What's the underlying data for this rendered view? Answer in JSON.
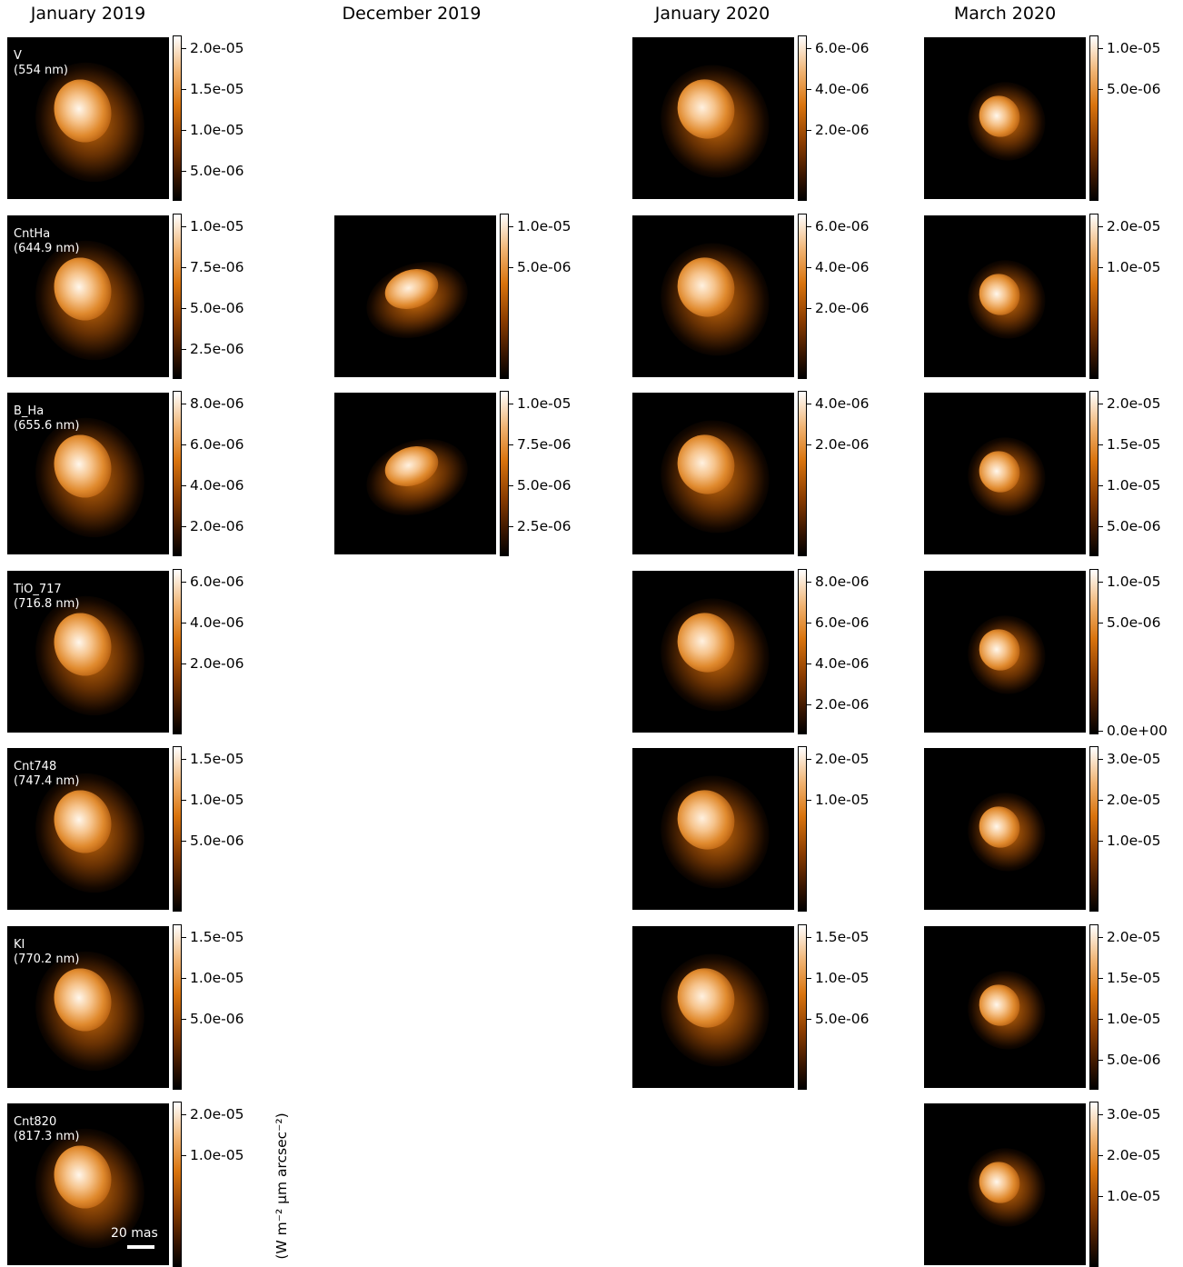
{
  "columns": [
    "January 2019",
    "December 2019",
    "January 2020",
    "March 2020"
  ],
  "unit_label": "(W m⁻² μm arcsec⁻²)",
  "scale_bar": {
    "label": "20 mas"
  },
  "colormap": [
    "#000000",
    "#3a1600",
    "#8a3c00",
    "#d9740e",
    "#f0b270",
    "#ffffff"
  ],
  "panels": [
    {
      "col": 0,
      "row": 0,
      "filter": "V\n(554 nm)",
      "ticks": [
        "2.0e-05",
        "1.5e-05",
        "1.0e-05",
        "5.0e-06"
      ]
    },
    {
      "col": 0,
      "row": 1,
      "filter": "CntHa\n(644.9 nm)",
      "ticks": [
        "1.0e-05",
        "7.5e-06",
        "5.0e-06",
        "2.5e-06"
      ]
    },
    {
      "col": 0,
      "row": 2,
      "filter": "B_Ha\n(655.6 nm)",
      "ticks": [
        "8.0e-06",
        "6.0e-06",
        "4.0e-06",
        "2.0e-06"
      ]
    },
    {
      "col": 0,
      "row": 3,
      "filter": "TiO_717\n(716.8 nm)",
      "ticks": [
        "6.0e-06",
        "4.0e-06",
        "2.0e-06"
      ]
    },
    {
      "col": 0,
      "row": 4,
      "filter": "Cnt748\n(747.4 nm)",
      "ticks": [
        "1.5e-05",
        "1.0e-05",
        "5.0e-06"
      ]
    },
    {
      "col": 0,
      "row": 5,
      "filter": "KI\n(770.2 nm)",
      "ticks": [
        "1.5e-05",
        "1.0e-05",
        "5.0e-06"
      ]
    },
    {
      "col": 0,
      "row": 6,
      "filter": "Cnt820\n(817.3 nm)",
      "ticks": [
        "2.0e-05",
        "1.0e-05"
      ]
    },
    {
      "col": 1,
      "row": 1,
      "filter": "",
      "ticks": [
        "1.0e-05",
        "5.0e-06"
      ]
    },
    {
      "col": 1,
      "row": 2,
      "filter": "",
      "ticks": [
        "1.0e-05",
        "7.5e-06",
        "5.0e-06",
        "2.5e-06"
      ]
    },
    {
      "col": 2,
      "row": 0,
      "filter": "",
      "ticks": [
        "6.0e-06",
        "4.0e-06",
        "2.0e-06"
      ]
    },
    {
      "col": 2,
      "row": 1,
      "filter": "",
      "ticks": [
        "6.0e-06",
        "4.0e-06",
        "2.0e-06"
      ]
    },
    {
      "col": 2,
      "row": 2,
      "filter": "",
      "ticks": [
        "4.0e-06",
        "2.0e-06"
      ]
    },
    {
      "col": 2,
      "row": 3,
      "filter": "",
      "ticks": [
        "8.0e-06",
        "6.0e-06",
        "4.0e-06",
        "2.0e-06"
      ]
    },
    {
      "col": 2,
      "row": 4,
      "filter": "",
      "ticks": [
        "2.0e-05",
        "1.0e-05"
      ]
    },
    {
      "col": 2,
      "row": 5,
      "filter": "",
      "ticks": [
        "1.5e-05",
        "1.0e-05",
        "5.0e-06"
      ]
    },
    {
      "col": 3,
      "row": 0,
      "filter": "",
      "ticks": [
        "1.0e-05",
        "5.0e-06"
      ]
    },
    {
      "col": 3,
      "row": 1,
      "filter": "",
      "ticks": [
        "2.0e-05",
        "1.0e-05"
      ]
    },
    {
      "col": 3,
      "row": 2,
      "filter": "",
      "ticks": [
        "2.0e-05",
        "1.5e-05",
        "1.0e-05",
        "5.0e-06"
      ]
    },
    {
      "col": 3,
      "row": 3,
      "filter": "",
      "ticks": [
        "1.0e-05",
        "5.0e-06",
        "0.0e+00"
      ]
    },
    {
      "col": 3,
      "row": 4,
      "filter": "",
      "ticks": [
        "3.0e-05",
        "2.0e-05",
        "1.0e-05"
      ]
    },
    {
      "col": 3,
      "row": 5,
      "filter": "",
      "ticks": [
        "2.0e-05",
        "1.5e-05",
        "1.0e-05",
        "5.0e-06"
      ]
    },
    {
      "col": 3,
      "row": 6,
      "filter": "",
      "ticks": [
        "3.0e-05",
        "2.0e-05",
        "1.0e-05"
      ]
    }
  ]
}
